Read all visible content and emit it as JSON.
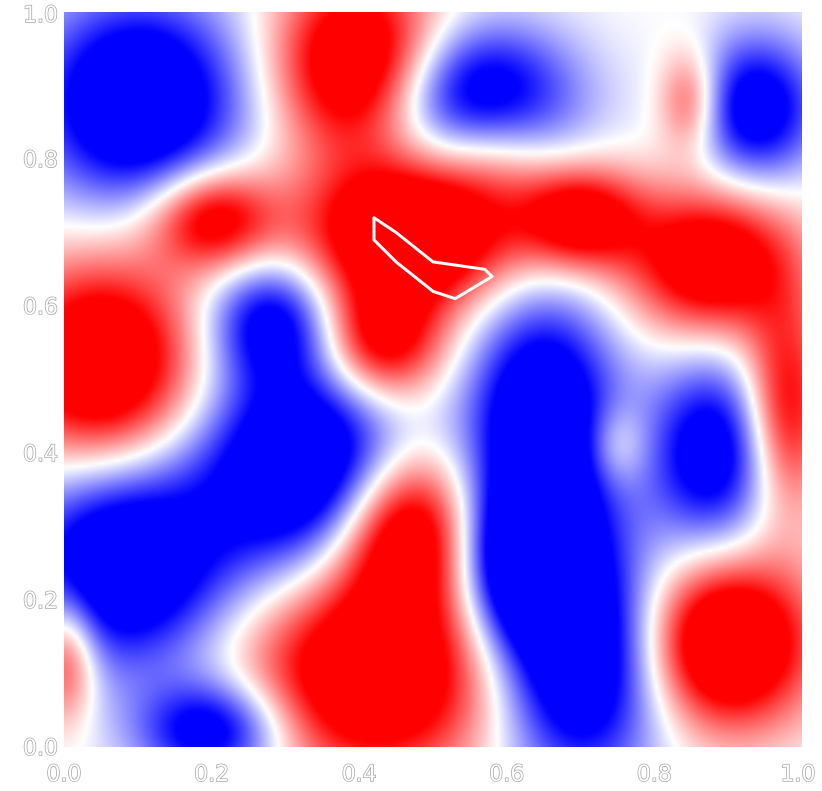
{
  "chart_data": {
    "type": "heatmap",
    "title": "",
    "xlabel": "",
    "ylabel": "",
    "xlim": [
      0.0,
      1.0
    ],
    "ylim": [
      0.0,
      1.0
    ],
    "x_ticks": [
      "0.0",
      "0.2",
      "0.4",
      "0.6",
      "0.8",
      "1.0"
    ],
    "y_ticks": [
      "0.0",
      "0.2",
      "0.4",
      "0.6",
      "0.8",
      "1.0"
    ],
    "grid": false,
    "colormap": {
      "negative": "#0000ff",
      "zero": "#ffffff",
      "positive": "#ff0000"
    },
    "value_range": [
      -1,
      1
    ],
    "positive_regions": [
      {
        "x": 0.4,
        "y": 0.93,
        "value": 1.0,
        "sx": 0.08,
        "sy": 0.09
      },
      {
        "x": 0.47,
        "y": 0.7,
        "value": 1.1,
        "sx": 0.1,
        "sy": 0.07
      },
      {
        "x": 0.43,
        "y": 0.55,
        "value": 0.8,
        "sx": 0.06,
        "sy": 0.06
      },
      {
        "x": 0.7,
        "y": 0.72,
        "value": 0.8,
        "sx": 0.06,
        "sy": 0.05
      },
      {
        "x": 0.88,
        "y": 0.66,
        "value": 0.9,
        "sx": 0.08,
        "sy": 0.07
      },
      {
        "x": 0.85,
        "y": 0.88,
        "value": 0.5,
        "sx": 0.03,
        "sy": 0.05
      },
      {
        "x": 0.2,
        "y": 0.72,
        "value": 0.8,
        "sx": 0.06,
        "sy": 0.05
      },
      {
        "x": 0.05,
        "y": 0.52,
        "value": 1.0,
        "sx": 0.09,
        "sy": 0.1
      },
      {
        "x": 0.98,
        "y": 0.46,
        "value": 0.7,
        "sx": 0.04,
        "sy": 0.1
      },
      {
        "x": 0.75,
        "y": 0.41,
        "value": 0.3,
        "sx": 0.03,
        "sy": 0.04
      },
      {
        "x": 0.58,
        "y": 0.82,
        "value": 0.4,
        "sx": 0.06,
        "sy": 0.06
      },
      {
        "x": 0.46,
        "y": 0.3,
        "value": 1.0,
        "sx": 0.07,
        "sy": 0.08
      },
      {
        "x": 0.42,
        "y": 0.1,
        "value": 1.0,
        "sx": 0.12,
        "sy": 0.1
      },
      {
        "x": 0.9,
        "y": 0.14,
        "value": 1.1,
        "sx": 0.08,
        "sy": 0.08
      },
      {
        "x": 0.0,
        "y": 0.12,
        "value": 0.6,
        "sx": 0.03,
        "sy": 0.06
      }
    ],
    "negative_regions": [
      {
        "x": 0.1,
        "y": 0.88,
        "value": 1.0,
        "sx": 0.1,
        "sy": 0.1
      },
      {
        "x": 0.56,
        "y": 0.88,
        "value": 1.0,
        "sx": 0.09,
        "sy": 0.07
      },
      {
        "x": 0.94,
        "y": 0.87,
        "value": 0.8,
        "sx": 0.06,
        "sy": 0.07
      },
      {
        "x": 0.33,
        "y": 0.38,
        "value": 1.1,
        "sx": 0.1,
        "sy": 0.1
      },
      {
        "x": 0.08,
        "y": 0.25,
        "value": 1.0,
        "sx": 0.1,
        "sy": 0.1
      },
      {
        "x": 0.65,
        "y": 0.44,
        "value": 1.0,
        "sx": 0.07,
        "sy": 0.12
      },
      {
        "x": 0.88,
        "y": 0.4,
        "value": 0.8,
        "sx": 0.06,
        "sy": 0.09
      },
      {
        "x": 0.7,
        "y": 0.12,
        "value": 1.0,
        "sx": 0.08,
        "sy": 0.12
      },
      {
        "x": 0.28,
        "y": 0.58,
        "value": 0.7,
        "sx": 0.06,
        "sy": 0.06
      },
      {
        "x": 0.62,
        "y": 0.25,
        "value": 0.9,
        "sx": 0.06,
        "sy": 0.08
      },
      {
        "x": 0.2,
        "y": 0.02,
        "value": 0.8,
        "sx": 0.07,
        "sy": 0.05
      }
    ],
    "contour_lines": [
      {
        "level": 1.0,
        "color": "#ffffff",
        "points": [
          [
            0.42,
            0.72
          ],
          [
            0.45,
            0.7
          ],
          [
            0.5,
            0.66
          ],
          [
            0.57,
            0.65
          ],
          [
            0.58,
            0.64
          ],
          [
            0.53,
            0.61
          ],
          [
            0.5,
            0.62
          ],
          [
            0.45,
            0.66
          ],
          [
            0.42,
            0.69
          ],
          [
            0.42,
            0.72
          ]
        ]
      }
    ]
  }
}
